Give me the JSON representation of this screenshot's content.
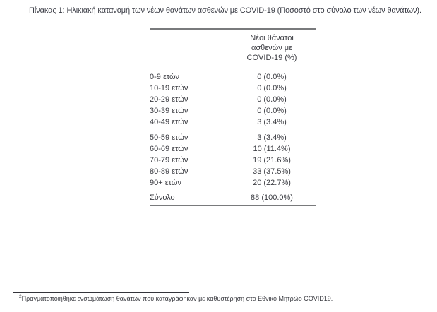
{
  "page": {
    "title": "Πίνακας 1: Ηλικιακή κατανομή των νέων θανάτων ασθενών με COVID-19 (Ποσοστό στο σύνολο των νέων θανάτων)."
  },
  "table": {
    "value_header_lines": [
      "Νέοι θάνατοι",
      "ασθενών με",
      "COVID-19 (%)"
    ],
    "groups": [
      {
        "rows": [
          {
            "age": "0-9 ετών",
            "value": "0 (0.0%)"
          },
          {
            "age": "10-19 ετών",
            "value": "0 (0.0%)"
          },
          {
            "age": "20-29 ετών",
            "value": "0 (0.0%)"
          },
          {
            "age": "30-39 ετών",
            "value": "0 (0.0%)"
          },
          {
            "age": "40-49 ετών",
            "value": "3 (3.4%)"
          }
        ]
      },
      {
        "rows": [
          {
            "age": "50-59 ετών",
            "value": "3 (3.4%)"
          },
          {
            "age": "60-69 ετών",
            "value": "10 (11.4%)"
          },
          {
            "age": "70-79 ετών",
            "value": "19 (21.6%)"
          },
          {
            "age": "80-89 ετών",
            "value": "33 (37.5%)"
          },
          {
            "age": "90+ ετών",
            "value": "20 (22.7%)"
          }
        ]
      }
    ],
    "total": {
      "label": "Σύνολο",
      "value": "88 (100.0%)"
    }
  },
  "footnote": {
    "marker": "2",
    "text": "Πραγματοποιήθηκε ενσωμάτωση θανάτων που καταγράφηκαν με καθυστέρηση στο Εθνικό Μητρώο COVID19."
  },
  "colors": {
    "text": "#3b3c42",
    "table_border": "#797a7c",
    "footnote_rule": "#33343a"
  }
}
